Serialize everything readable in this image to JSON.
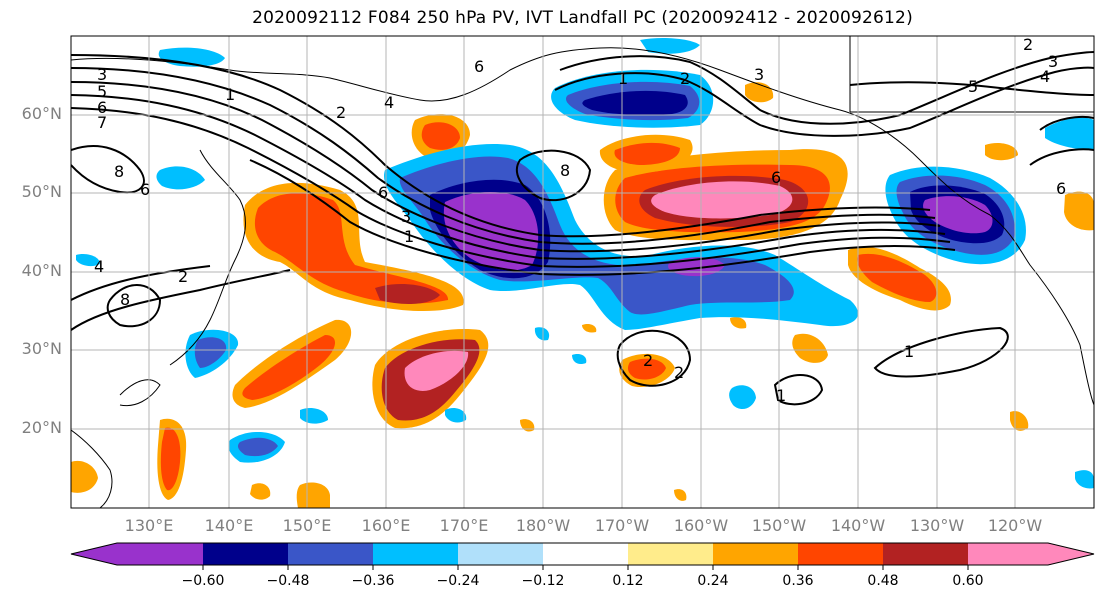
{
  "title": "2020092112 F084 250 hPa PV, IVT Landfall PC (2020092412 - 2020092612)",
  "map": {
    "lat_labels": [
      "60°N",
      "50°N",
      "40°N",
      "30°N",
      "20°N"
    ],
    "lon_labels": [
      "130°E",
      "140°E",
      "150°E",
      "160°E",
      "170°E",
      "180°W",
      "170°W",
      "160°W",
      "150°W",
      "140°W",
      "130°W",
      "120°W"
    ],
    "contour_labels": [
      "3",
      "5",
      "6",
      "7",
      "1",
      "2",
      "4",
      "6",
      "8",
      "2",
      "6",
      "4",
      "2",
      "8",
      "6",
      "3",
      "1",
      "2",
      "1",
      "2",
      "3",
      "4",
      "5",
      "6",
      "1",
      "1",
      "3",
      "2",
      "8",
      "6"
    ],
    "gridlines": true,
    "coastlines": true
  },
  "colorbar": {
    "tick_labels": [
      "−0.60",
      "−0.48",
      "−0.36",
      "−0.24",
      "−0.12",
      "0.12",
      "0.24",
      "0.36",
      "0.48",
      "0.60"
    ],
    "colors": [
      "#9932cc",
      "#00008b",
      "#3a56c8",
      "#00bfff",
      "#b0e0fa",
      "#ffffff",
      "#ffec8b",
      "#ffa500",
      "#ff4500",
      "#b22222",
      "#ff88bb"
    ],
    "extend": "both"
  }
}
